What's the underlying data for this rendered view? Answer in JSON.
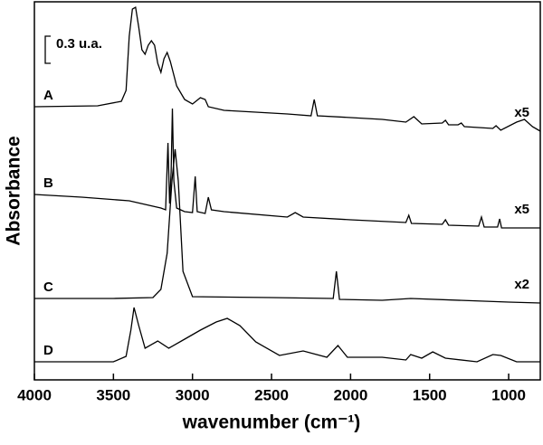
{
  "chart_data": {
    "type": "line",
    "x_label": "wavenumber (cm⁻¹)",
    "y_label": "Absorbance",
    "xlim": [
      4000,
      800
    ],
    "ylim": [
      0,
      4.18
    ],
    "xticks": [
      4000,
      3500,
      3000,
      2500,
      2000,
      1500,
      1000
    ],
    "scale_bar": {
      "value": 0.3,
      "label": "0.3 u.a."
    },
    "series": [
      {
        "name": "A",
        "scale_factor": "x5",
        "color": "#000000",
        "x": [
          4000,
          3600,
          3450,
          3420,
          3400,
          3380,
          3360,
          3340,
          3320,
          3300,
          3280,
          3260,
          3240,
          3220,
          3200,
          3180,
          3160,
          3140,
          3100,
          3050,
          3000,
          2950,
          2920,
          2900,
          2800,
          2600,
          2400,
          2250,
          2230,
          2210,
          2000,
          1800,
          1650,
          1600,
          1550,
          1420,
          1400,
          1380,
          1320,
          1300,
          1280,
          1100,
          1080,
          1050,
          950,
          900,
          850,
          800
        ],
        "values": [
          3.02,
          3.03,
          3.08,
          3.2,
          3.8,
          4.1,
          4.12,
          3.9,
          3.65,
          3.6,
          3.7,
          3.75,
          3.7,
          3.5,
          3.4,
          3.55,
          3.62,
          3.52,
          3.25,
          3.1,
          3.05,
          3.12,
          3.1,
          3.02,
          2.98,
          2.96,
          2.94,
          2.92,
          3.1,
          2.92,
          2.9,
          2.88,
          2.85,
          2.91,
          2.83,
          2.84,
          2.87,
          2.82,
          2.82,
          2.84,
          2.8,
          2.78,
          2.81,
          2.76,
          2.85,
          2.88,
          2.8,
          2.75
        ]
      },
      {
        "name": "B",
        "scale_factor": "x5",
        "color": "#000000",
        "x": [
          4000,
          3700,
          3400,
          3300,
          3200,
          3170,
          3155,
          3145,
          3135,
          3127,
          3118,
          3100,
          3050,
          3000,
          2983,
          2970,
          2920,
          2900,
          2880,
          2800,
          2400,
          2350,
          2300,
          2000,
          1650,
          1632,
          1615,
          1420,
          1400,
          1380,
          1190,
          1172,
          1155,
          1070,
          1057,
          1045,
          800
        ],
        "values": [
          2.05,
          2.02,
          1.98,
          1.94,
          1.9,
          1.88,
          2.62,
          1.95,
          2.3,
          3.0,
          2.2,
          1.9,
          1.86,
          1.85,
          2.25,
          1.86,
          1.84,
          2.02,
          1.88,
          1.86,
          1.8,
          1.85,
          1.8,
          1.77,
          1.74,
          1.82,
          1.73,
          1.72,
          1.77,
          1.71,
          1.7,
          1.8,
          1.69,
          1.69,
          1.78,
          1.68,
          1.68
        ]
      },
      {
        "name": "C",
        "scale_factor": "x2",
        "color": "#000000",
        "x": [
          4000,
          3500,
          3250,
          3200,
          3160,
          3130,
          3110,
          3090,
          3060,
          3000,
          2500,
          2110,
          2090,
          2070,
          1800,
          1620,
          1000,
          800
        ],
        "values": [
          0.9,
          0.9,
          0.91,
          1.0,
          1.4,
          2.2,
          2.55,
          2.2,
          1.2,
          0.92,
          0.91,
          0.9,
          1.2,
          0.89,
          0.88,
          0.9,
          0.86,
          0.85
        ]
      },
      {
        "name": "D",
        "color": "#000000",
        "x": [
          4000,
          3500,
          3420,
          3390,
          3370,
          3340,
          3300,
          3220,
          3150,
          3050,
          3000,
          2950,
          2850,
          2780,
          2700,
          2600,
          2450,
          2300,
          2150,
          2080,
          2020,
          1800,
          1650,
          1620,
          1550,
          1480,
          1400,
          1200,
          1100,
          1050,
          950,
          800
        ],
        "values": [
          0.2,
          0.2,
          0.26,
          0.55,
          0.8,
          0.6,
          0.35,
          0.43,
          0.35,
          0.45,
          0.5,
          0.55,
          0.64,
          0.68,
          0.6,
          0.42,
          0.27,
          0.32,
          0.25,
          0.38,
          0.25,
          0.25,
          0.22,
          0.28,
          0.24,
          0.31,
          0.24,
          0.2,
          0.28,
          0.27,
          0.2,
          0.2
        ]
      }
    ]
  }
}
